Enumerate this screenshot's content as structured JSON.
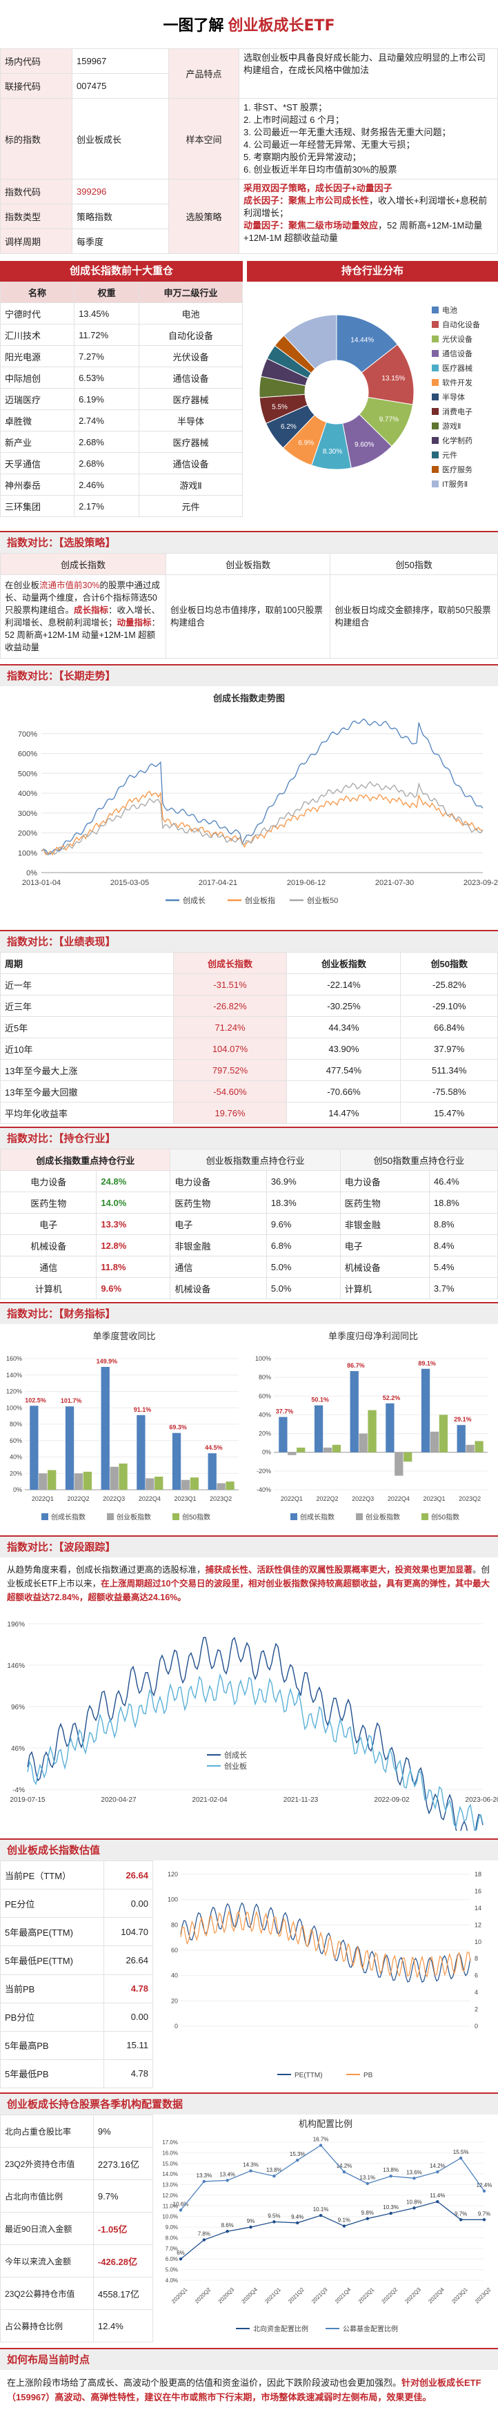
{
  "header": {
    "prefix": "一图了解",
    "title": "创业板成长ETF"
  },
  "overview": {
    "rows": [
      {
        "k": "场内代码",
        "v": "159967"
      },
      {
        "k": "联接代码",
        "v": "007475"
      },
      {
        "k": "标的指数",
        "v": "创业板成长"
      },
      {
        "k": "指数代码",
        "v": "399296"
      },
      {
        "k": "指数类型",
        "v": "策略指数"
      },
      {
        "k": "调样周期",
        "v": "每季度"
      }
    ],
    "label_top": "产品特点",
    "desc_top": "选取创业板中具备良好成长能力、且动量效应明显的上市公司构建组合，在成长风格中做加法",
    "label_mid": "样本空间",
    "desc_mid": [
      "1. 非ST、*ST 股票；",
      "2. 上市时间超过 6 个月；",
      "3. 公司最近一年无重大违规、财务报告无重大问题；",
      "4. 公司最近一年经营无异常、无重大亏损；",
      "5. 考察期内股价无异常波动；",
      "6. 创业板近半年日均市值前30%的股票"
    ],
    "label_bot": "选股策略",
    "desc_bot_1": "采用双因子策略，成长因子+动量因子",
    "desc_bot_2a": "成长因子：",
    "desc_bot_2b": "聚焦上市公司成长性",
    "desc_bot_2c": "，收入增长+利润增长+息税前利润增长；",
    "desc_bot_3a": "动量因子：",
    "desc_bot_3b": "聚焦二级市场动量效应",
    "desc_bot_3c": "，52 周新高+12M-1M动量+12M-1M 超额收益动量"
  },
  "top10": {
    "title": "创成长指数前十大重仓",
    "headers": [
      "名称",
      "权重",
      "申万二级行业"
    ],
    "rows": [
      [
        "宁德时代",
        "13.45%",
        "电池"
      ],
      [
        "汇川技术",
        "11.72%",
        "自动化设备"
      ],
      [
        "阳光电源",
        "7.27%",
        "光伏设备"
      ],
      [
        "中际旭创",
        "6.53%",
        "通信设备"
      ],
      [
        "迈瑞医疗",
        "6.19%",
        "医疗器械"
      ],
      [
        "卓胜微",
        "2.74%",
        "半导体"
      ],
      [
        "新产业",
        "2.68%",
        "医疗器械"
      ],
      [
        "天孚通信",
        "2.68%",
        "通信设备"
      ],
      [
        "神州泰岳",
        "2.46%",
        "游戏Ⅱ"
      ],
      [
        "三环集团",
        "2.17%",
        "元件"
      ]
    ]
  },
  "distribution": {
    "title": "持仓行业分布",
    "slices": [
      {
        "name": "电池",
        "value": 14.44,
        "color": "#4f81bd"
      },
      {
        "name": "自动化设备",
        "value": 13.15,
        "color": "#c0504d"
      },
      {
        "name": "光伏设备",
        "value": 9.77,
        "color": "#9bbb59"
      },
      {
        "name": "通信设备",
        "value": 9.6,
        "color": "#8064a2"
      },
      {
        "name": "医疗器械",
        "value": 8.3,
        "color": "#4bacc6"
      },
      {
        "name": "软件开发",
        "value": 6.9,
        "color": "#f79646"
      },
      {
        "name": "半导体",
        "value": 6.2,
        "color": "#2c4d75"
      },
      {
        "name": "消费电子",
        "value": 5.5,
        "color": "#772c2a"
      },
      {
        "name": "游戏Ⅱ",
        "value": 4.4,
        "color": "#5f7530"
      },
      {
        "name": "化学制药",
        "value": 3.9,
        "color": "#4d3b62"
      },
      {
        "name": "元件",
        "value": 3.1,
        "color": "#276a7c"
      },
      {
        "name": "医疗服务",
        "value": 2.8,
        "color": "#b65708"
      },
      {
        "name": "IT服务Ⅱ",
        "value": 11.94,
        "color": "#a5b6d8"
      }
    ],
    "labels": [
      "14.44%",
      "13.15%",
      "9.77%",
      "9.60%",
      "8.30%",
      "6.9%",
      "6.2%",
      "5.5%"
    ]
  },
  "rules": {
    "title": "指数对比：【选股策略】",
    "cols": [
      "创成长指数",
      "创业板指数",
      "创50指数"
    ],
    "desc1a": "在创业板",
    "desc1b": "流通市值前30%",
    "desc1c": "的股票中通过成长、动量两个维度，合计6个指标筛选50只股票构建组合。",
    "desc1d": "成长指标",
    "desc1e": "：收入增长、利润增长、息税前利润增长；",
    "desc1f": "动量指标",
    "desc1g": "：52 周新高+12M-1M 动量+12M-1M 超额收益动量",
    "desc2": "创业板日均总市值排序，取前100只股票构建组合",
    "desc3": "创业板日均成交金额排序，取前50只股票构建组合"
  },
  "trend": {
    "title": "指数对比：【长期走势】",
    "chart_title": "创成长指数走势图"
  },
  "perf": {
    "title": "指数对比：【业绩表现】",
    "headers": [
      "周期",
      "创成长指数",
      "创业板指数",
      "创50指数"
    ],
    "rows": [
      [
        "近一年",
        "-31.51%",
        "-22.14%",
        "-25.82%"
      ],
      [
        "近三年",
        "-26.82%",
        "-30.25%",
        "-29.10%"
      ],
      [
        "近5年",
        "71.24%",
        "44.34%",
        "66.84%"
      ],
      [
        "近10年",
        "104.07%",
        "43.90%",
        "37.97%"
      ],
      [
        "13年至今最大上涨",
        "797.52%",
        "477.54%",
        "511.34%"
      ],
      [
        "13年至今最大回撤",
        "-54.60%",
        "-70.66%",
        "-75.58%"
      ],
      [
        "平均年化收益率",
        "19.76%",
        "14.47%",
        "15.47%"
      ]
    ]
  },
  "industry": {
    "title": "指数对比：【持仓行业】",
    "headers": [
      "创成长指数重点持仓行业",
      "创业板指数重点持仓行业",
      "创50指数重点持仓行业"
    ],
    "rows": [
      [
        "电力设备",
        "24.8%",
        "电力设备",
        "36.9%",
        "电力设备",
        "46.4%"
      ],
      [
        "医药生物",
        "14.0%",
        "医药生物",
        "18.3%",
        "医药生物",
        "18.8%"
      ],
      [
        "电子",
        "13.3%",
        "电子",
        "9.6%",
        "非银金融",
        "8.8%"
      ],
      [
        "机械设备",
        "12.8%",
        "非银金融",
        "6.8%",
        "电子",
        "8.4%"
      ],
      [
        "通信",
        "11.8%",
        "通信",
        "5.0%",
        "机械设备",
        "5.4%"
      ],
      [
        "计算机",
        "9.6%",
        "机械设备",
        "5.0%",
        "计算机",
        "3.7%"
      ]
    ]
  },
  "finance": {
    "title": "指数对比：【财务指标】",
    "chart1_title": "单季度营收同比",
    "chart2_title": "单季度归母净利润同比",
    "legend": [
      "创成长指数",
      "创业板指数",
      "创50指数"
    ],
    "cats1": [
      "2022Q1",
      "2022Q2",
      "2022Q3",
      "2022Q4",
      "2023Q1",
      "2023Q2"
    ],
    "s1": [
      [
        102.5,
        101.7,
        149.9,
        91.1,
        69.3,
        44.5
      ],
      [
        20,
        20,
        28,
        14,
        12,
        8
      ],
      [
        24,
        22,
        32,
        16,
        15,
        10
      ]
    ],
    "labels1": [
      "102.5%",
      "101.7%",
      "149.9%",
      "91.1%",
      "69.3%",
      "44.5%"
    ],
    "cats2": [
      "2022Q1",
      "2022Q2",
      "2022Q3",
      "2022Q4",
      "2023Q1",
      "2023Q2"
    ],
    "s2": [
      [
        37.7,
        50.1,
        86.7,
        52.2,
        89.1,
        29.1
      ],
      [
        -3,
        5,
        20,
        -25,
        22,
        8
      ],
      [
        5,
        8,
        45,
        -10,
        40,
        12
      ]
    ],
    "labels2": [
      "37.7%",
      "50.1%",
      "86.7%",
      "52.2%",
      "89.1%",
      "29.1%"
    ],
    "colors": [
      "#4f81bd",
      "#a6a6a6",
      "#9bbb59"
    ]
  },
  "wave": {
    "title": "指数对比：【波段跟踪】",
    "desc1": "从趋势角度来看，创成长指数通过更高的选股标准，",
    "desc1r": "捕获成长性、活跃性俱佳的双属性股票概率更大，投资效果也更加显著",
    "desc2": "。创业板成长ETF上市以来，",
    "desc2r": "在上涨周期超过10个交易日的波段里，相对创业板指数保持较高超额收益，具有更高的弹性，其中最大超额收益达72.84%，超额收益最高达24.16%。",
    "legend": [
      "创成长",
      "创业板"
    ],
    "xticks": [
      "2019-07-15",
      "2020-04-27",
      "2021-02-04",
      "2021-11-23",
      "2022-09-02",
      "2023-06-20"
    ],
    "yticks": [
      "-4%",
      "46%",
      "96%",
      "146%",
      "196%"
    ]
  },
  "valuation": {
    "title": "创业板成长指数估值",
    "rows": [
      [
        "当前PE（TTM）",
        "26.64"
      ],
      [
        "PE分位",
        "0.00"
      ],
      [
        "5年最高PE(TTM)",
        "104.70"
      ],
      [
        "5年最低PE(TTM)",
        "26.64"
      ],
      [
        "当前PB",
        "4.78"
      ],
      [
        "PB分位",
        "0.00"
      ],
      [
        "5年最高PB",
        "15.11"
      ],
      [
        "5年最低PB",
        "4.78"
      ]
    ],
    "legend": [
      "PE(TTM)",
      "PB"
    ]
  },
  "funds": {
    "title": "创业板成长持仓股票各季机构配置数据",
    "rows": [
      [
        "北向占重仓股比率",
        "9%"
      ],
      [
        "23Q2外资持仓市值",
        "2273.16亿"
      ],
      [
        "占北向市值比例",
        "9.7%"
      ],
      [
        "最近90日流入金额",
        "-1.05亿"
      ],
      [
        "今年以来流入金额",
        "-426.28亿"
      ],
      [
        "23Q2公募持仓市值",
        "4558.17亿"
      ],
      [
        "占公募持仓比例",
        "12.4%"
      ]
    ],
    "chart_title": "机构配置比例",
    "legend": [
      "北向资金配置比例",
      "公募基金配置比例"
    ]
  },
  "invest": {
    "title": "如何布局当前时点",
    "text1": "在上涨阶段市场给了高成长、高波动个股更高的估值和资金溢价，因此下跌阶段波动也会更加强烈。",
    "text2": "针对创业板成长ETF（159967）高波动、高弹性特性，建议在牛市或熊市下行末期，市场整体跌速减弱时左侧布局，效果更佳。"
  },
  "chart_data": [
    {
      "type": "pie",
      "title": "持仓行业分布",
      "categories": [
        "电池",
        "自动化设备",
        "光伏设备",
        "通信设备",
        "医疗器械",
        "软件开发",
        "半导体",
        "消费电子",
        "游戏Ⅱ",
        "化学制药",
        "元件",
        "医疗服务",
        "IT服务Ⅱ"
      ],
      "values": [
        14.44,
        13.15,
        9.77,
        9.6,
        8.3,
        6.9,
        6.2,
        5.5,
        4.4,
        3.9,
        3.1,
        2.8,
        11.94
      ]
    },
    {
      "type": "line",
      "title": "创成长指数走势图",
      "series": [
        {
          "name": "创成长"
        },
        {
          "name": "创业板指"
        },
        {
          "name": "创业板50"
        }
      ],
      "x": [
        "2013-01-04",
        "2015-03-05",
        "2017-04-21",
        "2019-06-12",
        "2021-07-30",
        "2023-09-20"
      ],
      "ylim": [
        0,
        800
      ]
    },
    {
      "type": "bar",
      "title": "单季度营收同比",
      "categories": [
        "2022Q1",
        "2022Q2",
        "2022Q3",
        "2022Q4",
        "2023Q1",
        "2023Q2"
      ],
      "series": [
        {
          "name": "创成长指数",
          "values": [
            102.5,
            101.7,
            149.9,
            91.1,
            69.3,
            44.5
          ]
        },
        {
          "name": "创业板指数",
          "values": [
            20,
            20,
            28,
            14,
            12,
            8
          ]
        },
        {
          "name": "创50指数",
          "values": [
            24,
            22,
            32,
            16,
            15,
            10
          ]
        }
      ],
      "ylim": [
        0,
        160
      ]
    },
    {
      "type": "bar",
      "title": "单季度归母净利润同比",
      "categories": [
        "2022Q1",
        "2022Q2",
        "2022Q3",
        "2022Q4",
        "2023Q1",
        "2023Q2"
      ],
      "series": [
        {
          "name": "创成长指数",
          "values": [
            37.7,
            50.1,
            86.7,
            52.2,
            89.1,
            29.1
          ]
        },
        {
          "name": "创业板指数",
          "values": [
            -3,
            5,
            20,
            -25,
            22,
            8
          ]
        },
        {
          "name": "创50指数",
          "values": [
            5,
            8,
            45,
            -10,
            40,
            12
          ]
        }
      ],
      "ylim": [
        -40,
        100
      ]
    },
    {
      "type": "line",
      "title": "机构配置比例",
      "categories": [
        "2020Q1",
        "2020Q2",
        "2020Q3",
        "2020Q4",
        "2021Q1",
        "2021Q2",
        "2021Q3",
        "2021Q4",
        "2022Q1",
        "2022Q2",
        "2022Q3",
        "2022Q4",
        "2023Q1",
        "2023Q2"
      ],
      "series": [
        {
          "name": "北向资金配置比例",
          "values": [
            6.0,
            7.8,
            8.6,
            9.0,
            9.5,
            9.4,
            10.1,
            9.1,
            9.8,
            10.3,
            10.8,
            11.4,
            9.7,
            9.7
          ]
        },
        {
          "name": "公募基金配置比例",
          "values": [
            10.6,
            13.3,
            13.4,
            14.3,
            13.8,
            15.3,
            16.7,
            14.2,
            13.1,
            13.8,
            13.6,
            14.2,
            15.5,
            12.4
          ]
        }
      ],
      "ylim": [
        4,
        17
      ]
    }
  ]
}
